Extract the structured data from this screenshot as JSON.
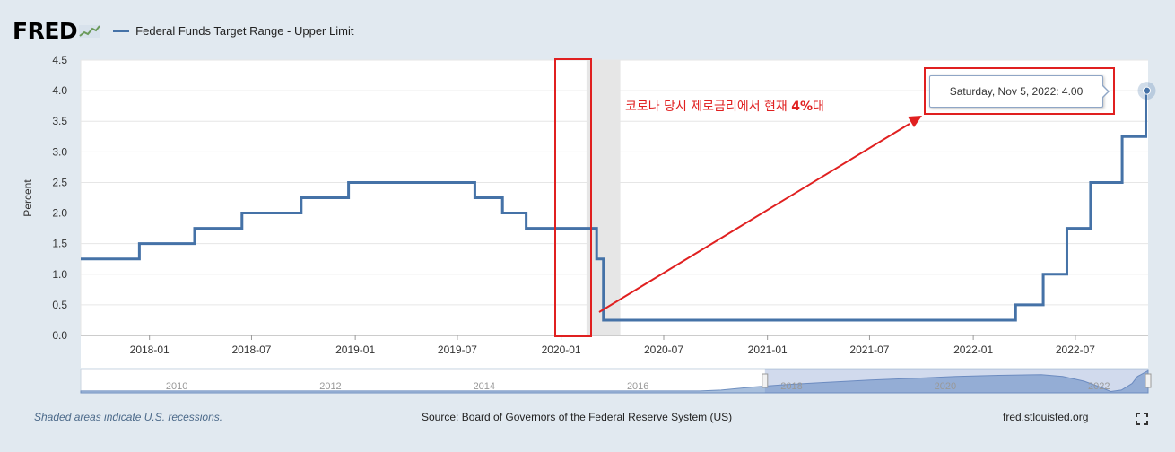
{
  "header": {
    "logo": "FRED",
    "series_label": "Federal Funds Target Range - Upper Limit"
  },
  "chart_data": {
    "type": "line",
    "title": "",
    "xlabel": "",
    "ylabel": "Percent",
    "ylim": [
      0,
      4.5
    ],
    "xlim": [
      "2017-09-01",
      "2022-11-07"
    ],
    "y_ticks": [
      "0.0",
      "0.5",
      "1.0",
      "1.5",
      "2.0",
      "2.5",
      "3.0",
      "3.5",
      "4.0",
      "4.5"
    ],
    "x_ticks": [
      "2018-01",
      "2018-07",
      "2019-01",
      "2019-07",
      "2020-01",
      "2020-07",
      "2021-01",
      "2021-07",
      "2022-01",
      "2022-07"
    ],
    "grid": true,
    "step": true,
    "line_color": "#4572a7",
    "series": [
      {
        "name": "Federal Funds Target Range - Upper Limit",
        "points": [
          [
            "2017-09-01",
            1.25
          ],
          [
            "2017-12-14",
            1.5
          ],
          [
            "2018-03-22",
            1.75
          ],
          [
            "2018-06-14",
            2.0
          ],
          [
            "2018-09-27",
            2.25
          ],
          [
            "2018-12-20",
            2.5
          ],
          [
            "2019-08-01",
            2.25
          ],
          [
            "2019-09-19",
            2.0
          ],
          [
            "2019-10-31",
            1.75
          ],
          [
            "2020-03-04",
            1.25
          ],
          [
            "2020-03-16",
            0.25
          ],
          [
            "2022-03-17",
            0.5
          ],
          [
            "2022-05-05",
            1.0
          ],
          [
            "2022-06-16",
            1.75
          ],
          [
            "2022-07-28",
            2.5
          ],
          [
            "2022-09-22",
            3.25
          ],
          [
            "2022-11-03",
            4.0
          ],
          [
            "2022-11-07",
            4.0
          ]
        ]
      }
    ],
    "navigator": {
      "labels": [
        "2010",
        "2012",
        "2014",
        "2016",
        "2018",
        "2020",
        "2022"
      ]
    },
    "tooltip": {
      "date": "Saturday, Nov 5, 2022:",
      "value": "4.00"
    }
  },
  "annotation": {
    "text": "코로나 당시 제로금리에서 현재 ",
    "bold": "4%",
    "suffix": "대"
  },
  "footer": {
    "recession_note": "Shaded areas indicate U.S. recessions.",
    "source": "Source: Board of Governors of the Federal Reserve System (US)",
    "url": "fred.stlouisfed.org"
  },
  "colors": {
    "series": "#4572a7",
    "recession": "#e6e6e6",
    "highlight": "#e02020",
    "background": "#e1e9f0"
  }
}
